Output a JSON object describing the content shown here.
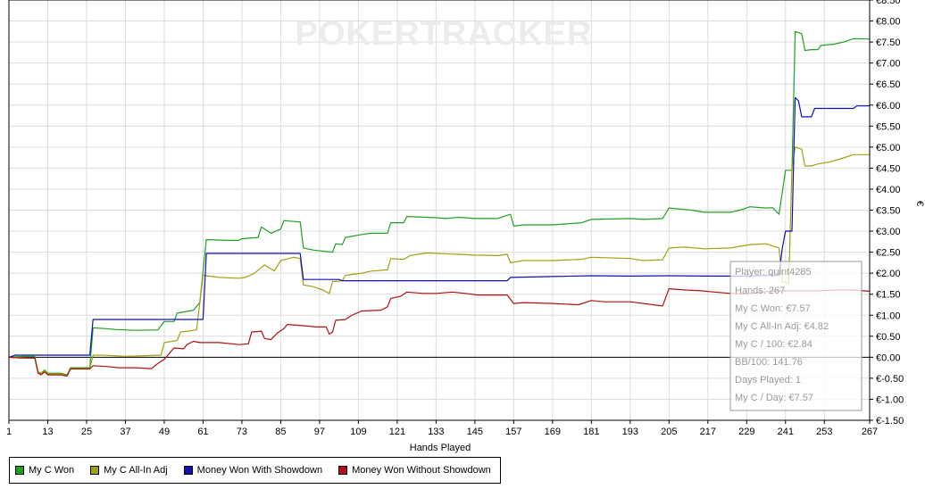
{
  "watermark": "POKERTRACKER",
  "chart_data": {
    "type": "line",
    "xlabel": "Hands Played",
    "ylabel": "€",
    "xlim": [
      1,
      267
    ],
    "ylim": [
      -1.5,
      8.5
    ],
    "xticks": [
      1,
      13,
      25,
      37,
      49,
      61,
      73,
      85,
      97,
      109,
      121,
      133,
      145,
      157,
      169,
      181,
      193,
      205,
      217,
      229,
      241,
      253,
      267
    ],
    "yticks": [
      {
        "v": 8.5,
        "label": "€8.50"
      },
      {
        "v": 8.0,
        "label": "€8.00"
      },
      {
        "v": 7.5,
        "label": "€7.50"
      },
      {
        "v": 7.0,
        "label": "€7.00"
      },
      {
        "v": 6.5,
        "label": "€6.50"
      },
      {
        "v": 6.0,
        "label": "€6.00"
      },
      {
        "v": 5.5,
        "label": "€5.50"
      },
      {
        "v": 5.0,
        "label": "€5.00"
      },
      {
        "v": 4.5,
        "label": "€4.50"
      },
      {
        "v": 4.0,
        "label": "€4.00"
      },
      {
        "v": 3.5,
        "label": "€3.50"
      },
      {
        "v": 3.0,
        "label": "€3.00"
      },
      {
        "v": 2.5,
        "label": "€2.50"
      },
      {
        "v": 2.0,
        "label": "€2.00"
      },
      {
        "v": 1.5,
        "label": "€1.50"
      },
      {
        "v": 1.0,
        "label": "€1.00"
      },
      {
        "v": 0.5,
        "label": "€0.50"
      },
      {
        "v": 0.0,
        "label": "€0.00"
      },
      {
        "v": -0.5,
        "label": "€-0.50"
      },
      {
        "v": -1.0,
        "label": "€-1.00"
      },
      {
        "v": -1.5,
        "label": "€-1.50"
      }
    ],
    "grid": true,
    "legend_position": "bottom-left",
    "series": [
      {
        "name": "My C Won",
        "color": "#1fa01f",
        "points": [
          [
            1,
            0
          ],
          [
            5,
            0.02
          ],
          [
            9,
            0.02
          ],
          [
            10,
            -0.35
          ],
          [
            11,
            -0.38
          ],
          [
            12,
            -0.3
          ],
          [
            13,
            -0.38
          ],
          [
            17,
            -0.38
          ],
          [
            19,
            -0.42
          ],
          [
            20,
            -0.25
          ],
          [
            26,
            -0.25
          ],
          [
            27,
            0.7
          ],
          [
            31,
            0.68
          ],
          [
            34,
            0.66
          ],
          [
            40,
            0.64
          ],
          [
            47,
            0.65
          ],
          [
            49,
            0.85
          ],
          [
            52,
            0.85
          ],
          [
            53,
            1.05
          ],
          [
            58,
            1.12
          ],
          [
            60,
            1.3
          ],
          [
            62,
            2.8
          ],
          [
            69,
            2.78
          ],
          [
            72,
            2.78
          ],
          [
            73,
            2.82
          ],
          [
            78,
            2.85
          ],
          [
            79,
            3.1
          ],
          [
            82,
            2.95
          ],
          [
            85,
            3.05
          ],
          [
            86,
            3.25
          ],
          [
            91,
            3.22
          ],
          [
            92,
            2.6
          ],
          [
            95,
            2.55
          ],
          [
            101,
            2.5
          ],
          [
            102,
            2.7
          ],
          [
            104,
            2.68
          ],
          [
            105,
            2.85
          ],
          [
            110,
            2.92
          ],
          [
            113,
            2.95
          ],
          [
            118,
            2.95
          ],
          [
            119,
            3.2
          ],
          [
            123,
            3.2
          ],
          [
            124,
            3.35
          ],
          [
            133,
            3.32
          ],
          [
            136,
            3.3
          ],
          [
            140,
            3.33
          ],
          [
            145,
            3.3
          ],
          [
            152,
            3.3
          ],
          [
            156,
            3.4
          ],
          [
            157,
            3.12
          ],
          [
            160,
            3.15
          ],
          [
            169,
            3.15
          ],
          [
            178,
            3.2
          ],
          [
            181,
            3.28
          ],
          [
            193,
            3.3
          ],
          [
            197,
            3.28
          ],
          [
            203,
            3.3
          ],
          [
            205,
            3.55
          ],
          [
            212,
            3.5
          ],
          [
            216,
            3.45
          ],
          [
            224,
            3.45
          ],
          [
            227,
            3.5
          ],
          [
            230,
            3.58
          ],
          [
            235,
            3.55
          ],
          [
            237,
            3.56
          ],
          [
            239,
            3.4
          ],
          [
            241,
            4.45
          ],
          [
            243,
            4.45
          ],
          [
            244,
            7.75
          ],
          [
            246,
            7.7
          ],
          [
            247,
            7.3
          ],
          [
            249,
            7.32
          ],
          [
            251,
            7.32
          ],
          [
            252,
            7.42
          ],
          [
            256,
            7.45
          ],
          [
            259,
            7.5
          ],
          [
            262,
            7.58
          ],
          [
            267,
            7.57
          ]
        ]
      },
      {
        "name": "My C All-In Adj",
        "color": "#a0a010",
        "points": [
          [
            1,
            0
          ],
          [
            5,
            -0.01
          ],
          [
            9,
            -0.02
          ],
          [
            10,
            -0.35
          ],
          [
            11,
            -0.4
          ],
          [
            12,
            -0.32
          ],
          [
            13,
            -0.4
          ],
          [
            17,
            -0.4
          ],
          [
            19,
            -0.43
          ],
          [
            20,
            -0.27
          ],
          [
            26,
            -0.27
          ],
          [
            27,
            0.05
          ],
          [
            30,
            0.05
          ],
          [
            37,
            0.02
          ],
          [
            48,
            0.05
          ],
          [
            49,
            0.35
          ],
          [
            53,
            0.4
          ],
          [
            54,
            0.6
          ],
          [
            59,
            0.65
          ],
          [
            61,
            1.95
          ],
          [
            66,
            1.9
          ],
          [
            72,
            1.88
          ],
          [
            74,
            1.9
          ],
          [
            77,
            2.0
          ],
          [
            80,
            2.2
          ],
          [
            83,
            2.05
          ],
          [
            85,
            2.3
          ],
          [
            89,
            2.38
          ],
          [
            91,
            2.35
          ],
          [
            92,
            1.72
          ],
          [
            95,
            1.68
          ],
          [
            98,
            1.6
          ],
          [
            100,
            1.52
          ],
          [
            101,
            1.8
          ],
          [
            104,
            1.82
          ],
          [
            105,
            1.95
          ],
          [
            110,
            2.0
          ],
          [
            113,
            2.05
          ],
          [
            118,
            2.08
          ],
          [
            119,
            2.35
          ],
          [
            123,
            2.33
          ],
          [
            125,
            2.42
          ],
          [
            130,
            2.48
          ],
          [
            140,
            2.45
          ],
          [
            145,
            2.43
          ],
          [
            152,
            2.42
          ],
          [
            155,
            2.45
          ],
          [
            156,
            2.25
          ],
          [
            160,
            2.3
          ],
          [
            169,
            2.3
          ],
          [
            178,
            2.33
          ],
          [
            181,
            2.38
          ],
          [
            193,
            2.35
          ],
          [
            197,
            2.3
          ],
          [
            203,
            2.32
          ],
          [
            205,
            2.6
          ],
          [
            210,
            2.62
          ],
          [
            216,
            2.58
          ],
          [
            224,
            2.6
          ],
          [
            230,
            2.68
          ],
          [
            235,
            2.7
          ],
          [
            239,
            2.6
          ],
          [
            240,
            1.8
          ],
          [
            242,
            1.75
          ],
          [
            243,
            4.5
          ],
          [
            244,
            5.0
          ],
          [
            246,
            4.95
          ],
          [
            247,
            4.55
          ],
          [
            249,
            4.55
          ],
          [
            251,
            4.6
          ],
          [
            255,
            4.65
          ],
          [
            258,
            4.72
          ],
          [
            262,
            4.82
          ],
          [
            267,
            4.82
          ]
        ]
      },
      {
        "name": "Money Won With Showdown",
        "color": "#1010b0",
        "points": [
          [
            1,
            0
          ],
          [
            3,
            0.05
          ],
          [
            26,
            0.05
          ],
          [
            27,
            0.9
          ],
          [
            61,
            0.9
          ],
          [
            62,
            2.47
          ],
          [
            91,
            2.47
          ],
          [
            92,
            1.85
          ],
          [
            103,
            1.85
          ],
          [
            104,
            1.82
          ],
          [
            118,
            1.82
          ],
          [
            133,
            1.82
          ],
          [
            145,
            1.82
          ],
          [
            155,
            1.82
          ],
          [
            156,
            1.9
          ],
          [
            169,
            1.92
          ],
          [
            181,
            1.94
          ],
          [
            193,
            1.93
          ],
          [
            205,
            1.94
          ],
          [
            217,
            1.93
          ],
          [
            229,
            1.93
          ],
          [
            236,
            1.95
          ],
          [
            239,
            1.95
          ],
          [
            240,
            2.6
          ],
          [
            241,
            3.0
          ],
          [
            243,
            3.0
          ],
          [
            244,
            6.18
          ],
          [
            245,
            6.1
          ],
          [
            246,
            5.72
          ],
          [
            249,
            5.72
          ],
          [
            250,
            5.92
          ],
          [
            262,
            5.92
          ],
          [
            263,
            5.98
          ],
          [
            267,
            5.98
          ]
        ]
      },
      {
        "name": "Money Won Without Showdown",
        "color": "#b01010",
        "points": [
          [
            1,
            0
          ],
          [
            5,
            -0.02
          ],
          [
            9,
            -0.02
          ],
          [
            10,
            -0.38
          ],
          [
            11,
            -0.42
          ],
          [
            12,
            -0.35
          ],
          [
            13,
            -0.42
          ],
          [
            17,
            -0.42
          ],
          [
            19,
            -0.45
          ],
          [
            20,
            -0.28
          ],
          [
            26,
            -0.28
          ],
          [
            27,
            -0.2
          ],
          [
            31,
            -0.22
          ],
          [
            35,
            -0.25
          ],
          [
            40,
            -0.25
          ],
          [
            45,
            -0.27
          ],
          [
            47,
            -0.15
          ],
          [
            49,
            -0.05
          ],
          [
            52,
            0.22
          ],
          [
            55,
            0.2
          ],
          [
            56,
            0.3
          ],
          [
            58,
            0.38
          ],
          [
            60,
            0.35
          ],
          [
            66,
            0.35
          ],
          [
            70,
            0.32
          ],
          [
            72,
            0.3
          ],
          [
            75,
            0.32
          ],
          [
            76,
            0.6
          ],
          [
            79,
            0.62
          ],
          [
            80,
            0.45
          ],
          [
            82,
            0.42
          ],
          [
            84,
            0.58
          ],
          [
            86,
            0.68
          ],
          [
            87,
            0.78
          ],
          [
            92,
            0.75
          ],
          [
            96,
            0.72
          ],
          [
            99,
            0.72
          ],
          [
            100,
            0.55
          ],
          [
            101,
            0.6
          ],
          [
            102,
            0.88
          ],
          [
            105,
            0.9
          ],
          [
            107,
            1.0
          ],
          [
            110,
            1.1
          ],
          [
            116,
            1.12
          ],
          [
            118,
            1.2
          ],
          [
            119,
            1.4
          ],
          [
            122,
            1.45
          ],
          [
            124,
            1.55
          ],
          [
            129,
            1.52
          ],
          [
            133,
            1.52
          ],
          [
            138,
            1.55
          ],
          [
            142,
            1.52
          ],
          [
            146,
            1.48
          ],
          [
            155,
            1.48
          ],
          [
            157,
            1.28
          ],
          [
            160,
            1.3
          ],
          [
            169,
            1.28
          ],
          [
            177,
            1.25
          ],
          [
            181,
            1.35
          ],
          [
            185,
            1.32
          ],
          [
            193,
            1.32
          ],
          [
            200,
            1.25
          ],
          [
            203,
            1.22
          ],
          [
            205,
            1.63
          ],
          [
            210,
            1.6
          ],
          [
            215,
            1.58
          ],
          [
            219,
            1.55
          ],
          [
            224,
            1.52
          ],
          [
            229,
            1.5
          ],
          [
            233,
            1.55
          ],
          [
            238,
            1.58
          ],
          [
            241,
            1.58
          ],
          [
            251,
            1.58
          ],
          [
            257,
            1.6
          ],
          [
            262,
            1.6
          ],
          [
            267,
            1.57
          ]
        ]
      }
    ],
    "zero_line": 0
  },
  "tooltip": {
    "lines": [
      "Player: quint4285",
      "Hands: 267",
      "My C Won: €7.57",
      "My C All-In Adj: €4.82",
      "My C / 100: €2.84",
      "BB/100: 141.76",
      "Days Played: 1",
      "My C / Day: €7.57"
    ]
  }
}
